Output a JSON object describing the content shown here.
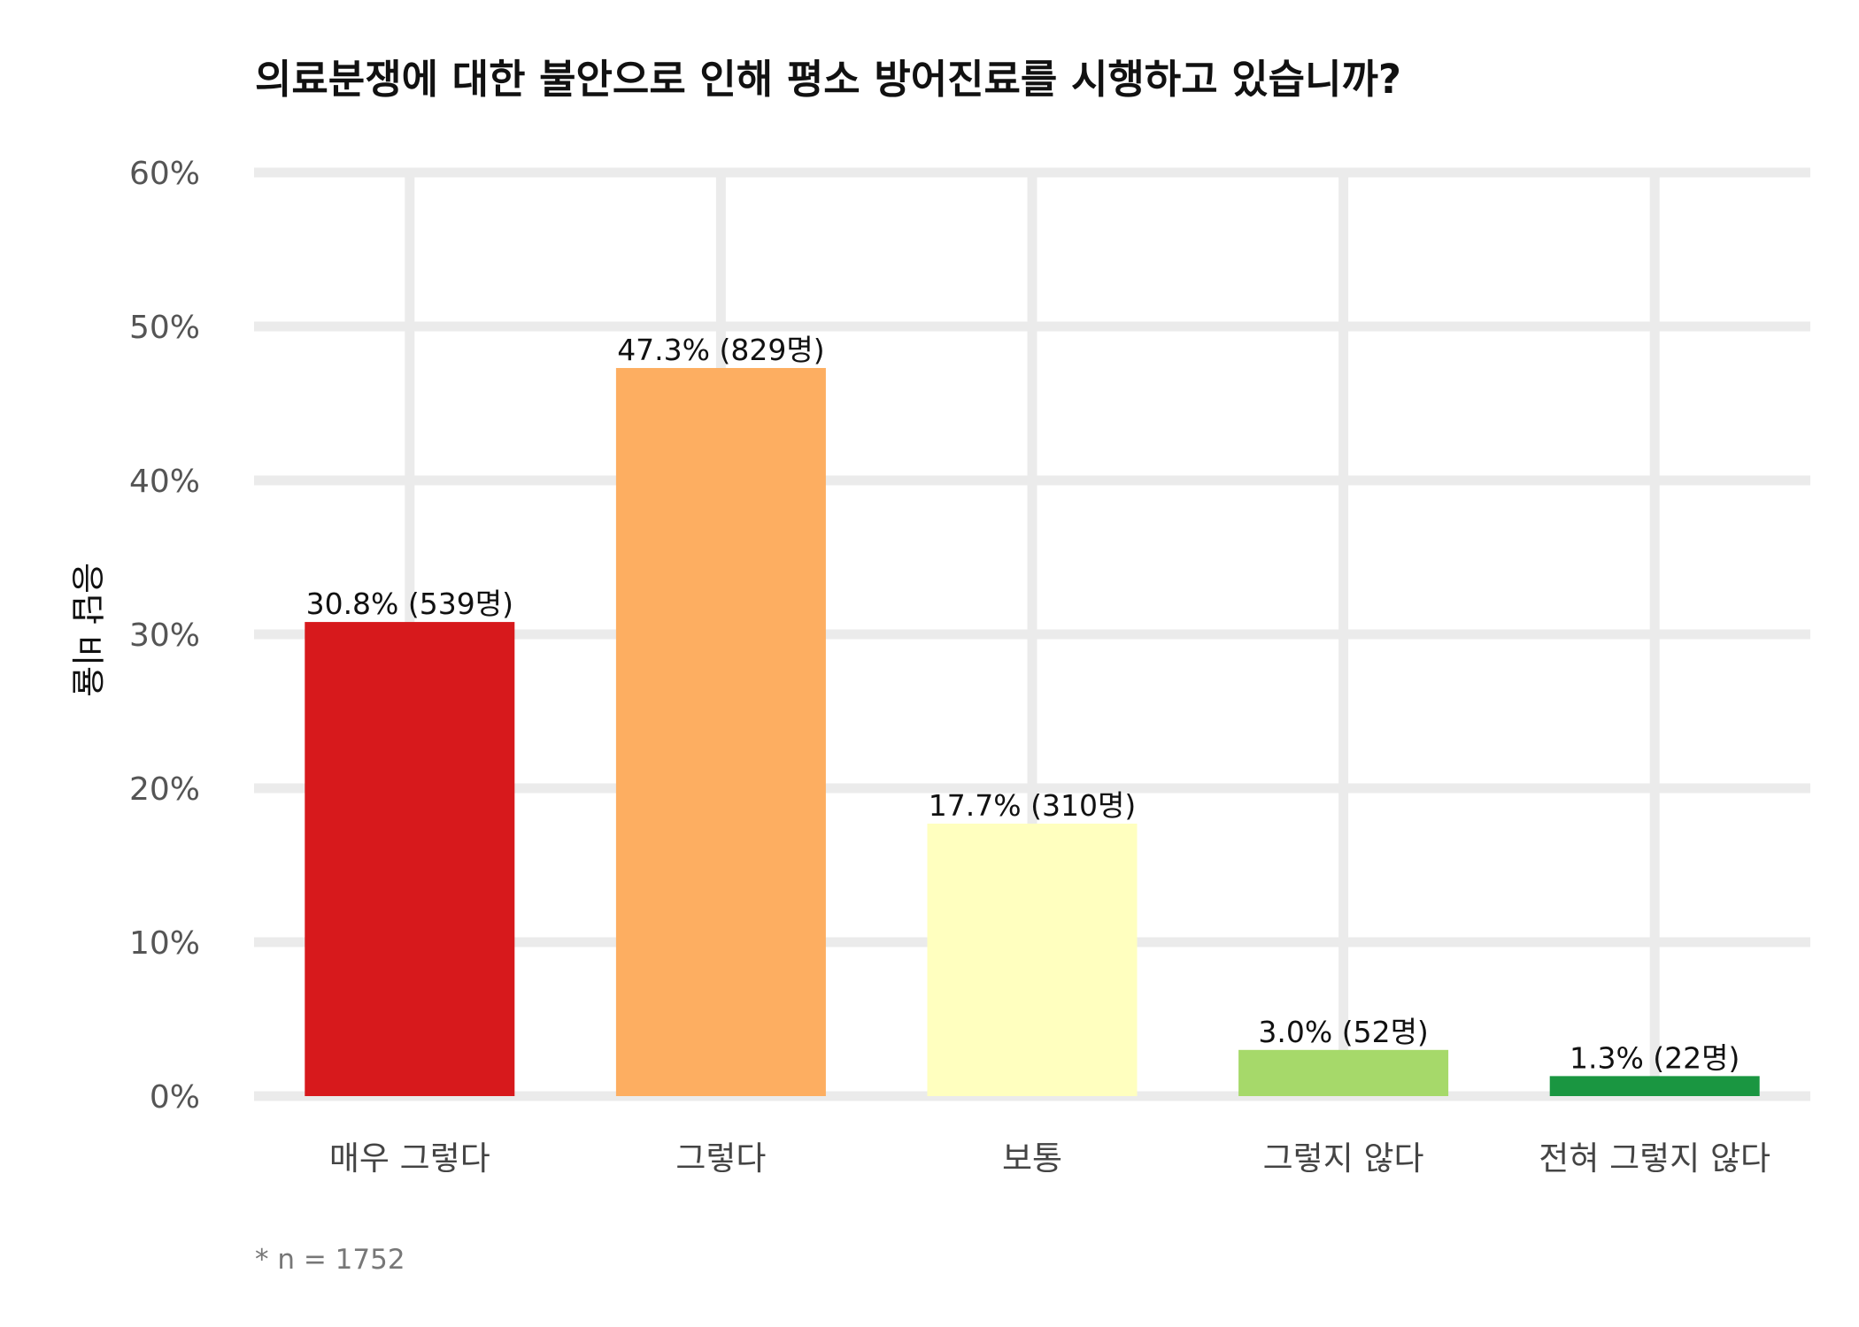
{
  "chart_data": {
    "type": "bar",
    "title": "의료분쟁에 대한 불안으로 인해 평소 방어진료를 시행하고 있습니까?",
    "xlabel": "",
    "ylabel": "응답 비율",
    "ylim": [
      0,
      60
    ],
    "y_ticks": [
      "0%",
      "10%",
      "20%",
      "30%",
      "40%",
      "50%",
      "60%"
    ],
    "categories": [
      "매우 그렇다",
      "그렇다",
      "보통",
      "그렇지 않다",
      "전혀 그렇지 않다"
    ],
    "values": [
      30.8,
      47.3,
      17.7,
      3.0,
      1.3
    ],
    "data_labels": [
      "30.8% (539명)",
      "47.3% (829명)",
      "17.7% (310명)",
      "3.0% (52명)",
      "1.3% (22명)"
    ],
    "colors": [
      "#d7191c",
      "#fdae61",
      "#ffffbf",
      "#a6d96a",
      "#1a9641"
    ],
    "grid": true,
    "legend": "none",
    "note": "* n = 1752"
  }
}
